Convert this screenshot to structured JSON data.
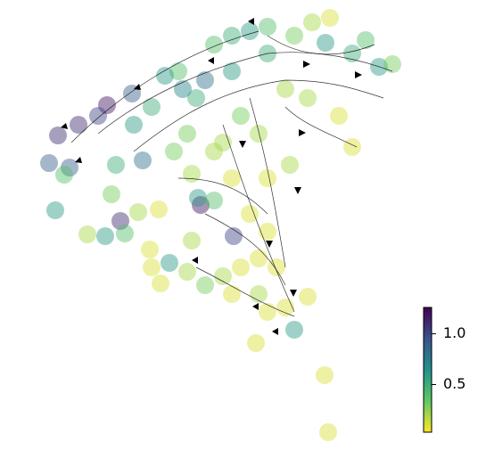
{
  "chart_data": {
    "type": "scatter",
    "x": [
      65,
      55,
      88,
      120,
      110,
      148,
      160,
      78,
      72,
      62,
      130,
      135,
      125,
      98,
      118,
      140,
      155,
      178,
      168,
      225,
      262,
      222,
      240,
      190,
      170,
      215,
      200,
      240,
      260,
      280,
      300,
      330,
      365,
      395,
      425,
      440,
      410,
      370,
      350,
      220,
      260,
      300,
      185,
      205,
      170,
      150,
      230,
      270,
      320,
      345,
      380,
      395,
      290,
      250,
      210,
      195,
      240,
      215,
      260,
      300,
      325,
      280,
      300,
      290,
      270,
      310,
      250,
      230,
      260,
      290,
      300,
      320,
      345,
      330,
      287,
      364,
      368,
      180,
      210
    ],
    "y": [
      152,
      183,
      140,
      118,
      130,
      105,
      180,
      188,
      196,
      236,
      185,
      248,
      218,
      263,
      265,
      262,
      238,
      235,
      280,
      230,
      265,
      222,
      225,
      295,
      300,
      270,
      80,
      50,
      40,
      35,
      30,
      40,
      48,
      60,
      75,
      72,
      45,
      20,
      25,
      110,
      80,
      60,
      85,
      100,
      120,
      140,
      90,
      130,
      100,
      110,
      130,
      165,
      150,
      160,
      150,
      170,
      170,
      195,
      200,
      200,
      185,
      240,
      260,
      290,
      300,
      300,
      310,
      320,
      330,
      330,
      350,
      345,
      333,
      370,
      385,
      421,
      485,
      318,
      305
    ],
    "color_values": [
      1.1,
      0.9,
      1.1,
      1.2,
      1.0,
      0.9,
      0.8,
      0.9,
      0.4,
      0.6,
      0.5,
      1.1,
      0.3,
      0.2,
      0.6,
      0.4,
      0.2,
      0.1,
      0.1,
      1.2,
      1.0,
      0.6,
      0.4,
      0.6,
      0.1,
      0.2,
      0.4,
      0.4,
      0.5,
      0.6,
      0.4,
      0.3,
      0.6,
      0.5,
      0.6,
      0.3,
      0.4,
      0.1,
      0.2,
      0.5,
      0.6,
      0.5,
      0.6,
      0.7,
      0.5,
      0.6,
      0.8,
      0.3,
      0.2,
      0.2,
      0.1,
      0.1,
      0.2,
      0.2,
      0.3,
      0.3,
      0.2,
      0.2,
      0.1,
      0.1,
      0.2,
      0.1,
      0.1,
      0.1,
      0.1,
      0.1,
      0.2,
      0.3,
      0.1,
      0.2,
      0.1,
      0.1,
      0.1,
      0.6,
      0.1,
      0.1,
      0.1,
      0.1,
      0.2
    ],
    "xlim": [
      0,
      545
    ],
    "ylim": [
      501,
      0
    ],
    "colormap": [
      "#fde725",
      "#5ec962",
      "#21918c",
      "#3b528b",
      "#440154"
    ],
    "clim": [
      0.03,
      1.26
    ],
    "cticks": [
      0.5,
      {
        "value": 1,
        "label": "1.0"
      }
    ]
  }
}
